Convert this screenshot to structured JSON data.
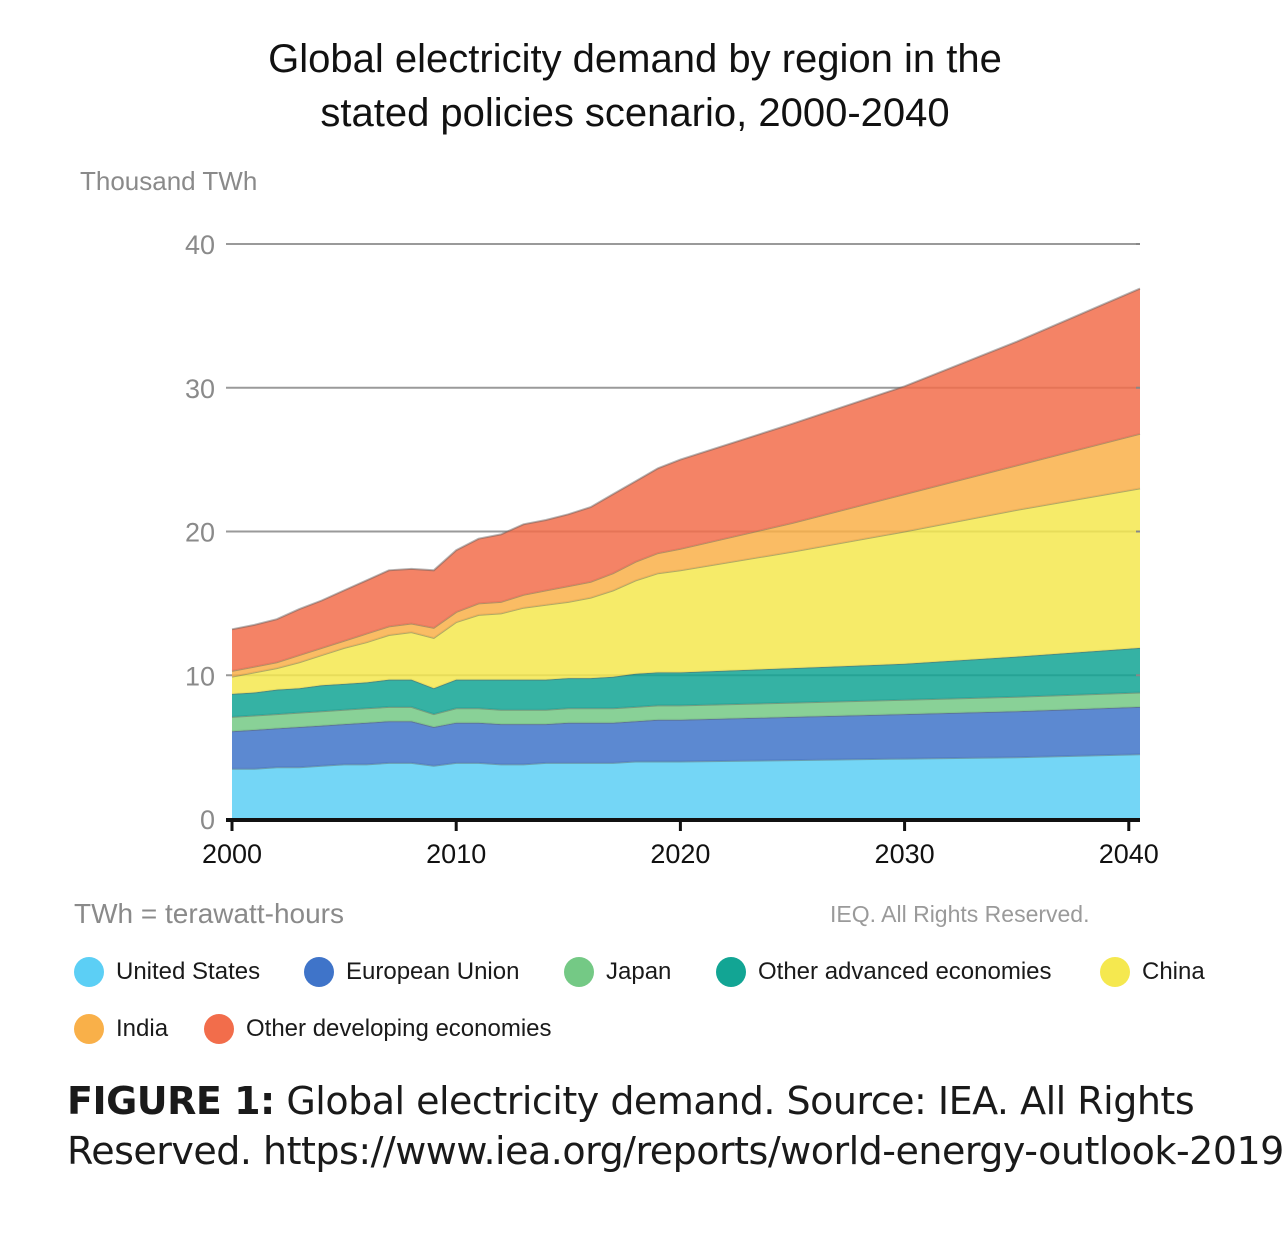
{
  "chart_data": {
    "type": "area",
    "stacked": true,
    "title_lines": [
      "Global electricity demand by region in the",
      "stated policies scenario, 2000-2040"
    ],
    "ylabel": "Thousand TWh",
    "ylim": [
      0,
      40
    ],
    "xlim": [
      2000,
      2040.5
    ],
    "y_ticks": [
      0,
      10,
      20,
      30,
      40
    ],
    "x_ticks": [
      2000,
      2010,
      2020,
      2030,
      2040
    ],
    "grid": true,
    "x": [
      2000,
      2001,
      2002,
      2003,
      2004,
      2005,
      2006,
      2007,
      2008,
      2009,
      2010,
      2011,
      2012,
      2013,
      2014,
      2015,
      2016,
      2017,
      2018,
      2019,
      2020,
      2025,
      2030,
      2035,
      2040.5
    ],
    "series": [
      {
        "name": "United States",
        "color": "#5ccff5",
        "values": [
          3.5,
          3.5,
          3.6,
          3.6,
          3.7,
          3.8,
          3.8,
          3.9,
          3.9,
          3.7,
          3.9,
          3.9,
          3.8,
          3.8,
          3.9,
          3.9,
          3.9,
          3.9,
          4.0,
          4.0,
          4.0,
          4.1,
          4.2,
          4.3,
          4.5
        ]
      },
      {
        "name": "European Union",
        "color": "#3f74c9",
        "values": [
          2.6,
          2.7,
          2.7,
          2.8,
          2.8,
          2.8,
          2.9,
          2.9,
          2.9,
          2.7,
          2.8,
          2.8,
          2.8,
          2.8,
          2.7,
          2.8,
          2.8,
          2.8,
          2.8,
          2.9,
          2.9,
          3.0,
          3.1,
          3.2,
          3.3
        ]
      },
      {
        "name": "Japan",
        "color": "#74c985",
        "values": [
          1.0,
          1.0,
          1.0,
          1.0,
          1.0,
          1.0,
          1.0,
          1.0,
          1.0,
          0.9,
          1.0,
          1.0,
          1.0,
          1.0,
          1.0,
          1.0,
          1.0,
          1.0,
          1.0,
          1.0,
          1.0,
          1.0,
          1.0,
          1.0,
          1.0
        ]
      },
      {
        "name": "Other advanced economies",
        "color": "#12a594",
        "values": [
          1.6,
          1.6,
          1.7,
          1.7,
          1.8,
          1.8,
          1.8,
          1.9,
          1.9,
          1.8,
          2.0,
          2.0,
          2.1,
          2.1,
          2.1,
          2.1,
          2.1,
          2.2,
          2.3,
          2.3,
          2.3,
          2.4,
          2.5,
          2.8,
          3.1
        ]
      },
      {
        "name": "China",
        "color": "#f5e84f",
        "values": [
          1.2,
          1.4,
          1.5,
          1.8,
          2.1,
          2.5,
          2.8,
          3.1,
          3.3,
          3.5,
          4.0,
          4.5,
          4.6,
          5.0,
          5.2,
          5.3,
          5.6,
          6.0,
          6.5,
          6.9,
          7.1,
          8.1,
          9.2,
          10.2,
          11.1
        ]
      },
      {
        "name": "India",
        "color": "#f9b049",
        "values": [
          0.4,
          0.4,
          0.4,
          0.5,
          0.5,
          0.5,
          0.6,
          0.6,
          0.6,
          0.7,
          0.7,
          0.8,
          0.8,
          0.9,
          1.0,
          1.1,
          1.1,
          1.2,
          1.3,
          1.4,
          1.5,
          2.0,
          2.6,
          3.1,
          3.8
        ]
      },
      {
        "name": "Other developing economies",
        "color": "#f26d4b",
        "values": [
          2.9,
          2.9,
          3.0,
          3.2,
          3.3,
          3.5,
          3.7,
          3.9,
          3.8,
          4.0,
          4.3,
          4.5,
          4.7,
          4.9,
          4.9,
          5.0,
          5.2,
          5.5,
          5.6,
          5.9,
          6.2,
          6.9,
          7.5,
          8.6,
          10.1
        ]
      }
    ]
  },
  "footnote": "TWh = terawatt-hours",
  "rights": "IEQ. All Rights Reserved.",
  "caption": {
    "label": "FIGURE 1:",
    "text_line1": " Global electricity demand. Source: IEA. All Rights",
    "text_line2": "Reserved. https://www.iea.org/reports/world-energy-outlook-2019"
  }
}
